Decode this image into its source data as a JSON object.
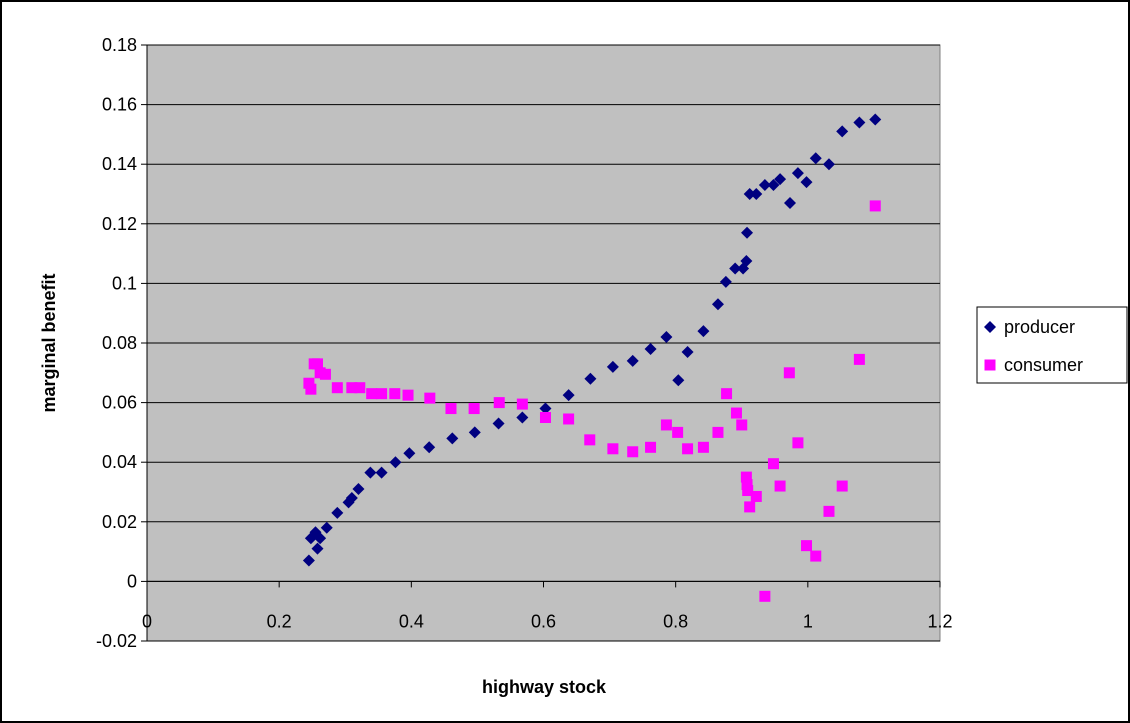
{
  "chart_data": {
    "type": "scatter",
    "title": "",
    "xlabel": "highway stock",
    "ylabel": "marginal benefit",
    "xlim": [
      0,
      1.2
    ],
    "ylim": [
      -0.02,
      0.18
    ],
    "x_ticks": [
      "0",
      "0.2",
      "0.4",
      "0.6",
      "0.8",
      "1",
      "1.2"
    ],
    "y_ticks": [
      "-0.02",
      "0",
      "0.02",
      "0.04",
      "0.06",
      "0.08",
      "0.1",
      "0.12",
      "0.14",
      "0.16",
      "0.18"
    ],
    "grid": "horizontal",
    "plot_background": "#C0C0C0",
    "legend_position": "right",
    "series": [
      {
        "name": "producer",
        "marker": "diamond",
        "color": "#000080",
        "points": [
          [
            0.245,
            0.007
          ],
          [
            0.248,
            0.0145
          ],
          [
            0.255,
            0.0165
          ],
          [
            0.258,
            0.011
          ],
          [
            0.262,
            0.0145
          ],
          [
            0.272,
            0.018
          ],
          [
            0.288,
            0.023
          ],
          [
            0.305,
            0.0265
          ],
          [
            0.31,
            0.028
          ],
          [
            0.32,
            0.031
          ],
          [
            0.338,
            0.0365
          ],
          [
            0.355,
            0.0365
          ],
          [
            0.376,
            0.04
          ],
          [
            0.397,
            0.043
          ],
          [
            0.427,
            0.045
          ],
          [
            0.462,
            0.048
          ],
          [
            0.496,
            0.05
          ],
          [
            0.532,
            0.053
          ],
          [
            0.568,
            0.055
          ],
          [
            0.603,
            0.058
          ],
          [
            0.638,
            0.0625
          ],
          [
            0.671,
            0.068
          ],
          [
            0.705,
            0.072
          ],
          [
            0.735,
            0.074
          ],
          [
            0.762,
            0.078
          ],
          [
            0.786,
            0.082
          ],
          [
            0.804,
            0.0675
          ],
          [
            0.818,
            0.077
          ],
          [
            0.842,
            0.084
          ],
          [
            0.864,
            0.093
          ],
          [
            0.876,
            0.1005
          ],
          [
            0.89,
            0.105
          ],
          [
            0.902,
            0.105
          ],
          [
            0.907,
            0.1075
          ],
          [
            0.908,
            0.117
          ],
          [
            0.912,
            0.13
          ],
          [
            0.922,
            0.13
          ],
          [
            0.935,
            0.133
          ],
          [
            0.948,
            0.133
          ],
          [
            0.958,
            0.135
          ],
          [
            0.973,
            0.127
          ],
          [
            0.985,
            0.137
          ],
          [
            0.998,
            0.134
          ],
          [
            1.012,
            0.142
          ],
          [
            1.032,
            0.14
          ],
          [
            1.052,
            0.151
          ],
          [
            1.078,
            0.154
          ],
          [
            1.102,
            0.155
          ]
        ]
      },
      {
        "name": "consumer",
        "marker": "square",
        "color": "#FF00FF",
        "points": [
          [
            0.245,
            0.0665
          ],
          [
            0.248,
            0.0645
          ],
          [
            0.253,
            0.073
          ],
          [
            0.258,
            0.073
          ],
          [
            0.262,
            0.07
          ],
          [
            0.27,
            0.0695
          ],
          [
            0.288,
            0.065
          ],
          [
            0.31,
            0.065
          ],
          [
            0.322,
            0.065
          ],
          [
            0.34,
            0.063
          ],
          [
            0.355,
            0.063
          ],
          [
            0.375,
            0.063
          ],
          [
            0.395,
            0.0625
          ],
          [
            0.428,
            0.0615
          ],
          [
            0.46,
            0.058
          ],
          [
            0.495,
            0.058
          ],
          [
            0.533,
            0.06
          ],
          [
            0.568,
            0.0595
          ],
          [
            0.603,
            0.055
          ],
          [
            0.638,
            0.0545
          ],
          [
            0.67,
            0.0475
          ],
          [
            0.705,
            0.0445
          ],
          [
            0.735,
            0.0435
          ],
          [
            0.762,
            0.045
          ],
          [
            0.786,
            0.0525
          ],
          [
            0.803,
            0.05
          ],
          [
            0.818,
            0.0445
          ],
          [
            0.842,
            0.045
          ],
          [
            0.864,
            0.05
          ],
          [
            0.877,
            0.063
          ],
          [
            0.892,
            0.0565
          ],
          [
            0.9,
            0.0525
          ],
          [
            0.907,
            0.035
          ],
          [
            0.908,
            0.0325
          ],
          [
            0.909,
            0.0305
          ],
          [
            0.912,
            0.025
          ],
          [
            0.922,
            0.0285
          ],
          [
            0.935,
            -0.005
          ],
          [
            0.948,
            0.0395
          ],
          [
            0.958,
            0.032
          ],
          [
            0.972,
            0.07
          ],
          [
            0.985,
            0.0465
          ],
          [
            0.998,
            0.012
          ],
          [
            1.012,
            0.0085
          ],
          [
            1.032,
            0.0235
          ],
          [
            1.052,
            0.032
          ],
          [
            1.078,
            0.0745
          ],
          [
            1.102,
            0.126
          ]
        ]
      }
    ]
  }
}
